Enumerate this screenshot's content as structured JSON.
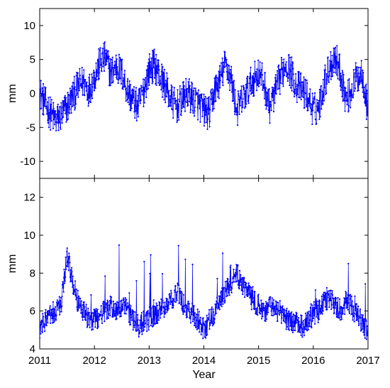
{
  "chart_data": [
    {
      "type": "line",
      "panel": "top",
      "title": "",
      "xlabel": "",
      "ylabel": "mm",
      "xlim": [
        2011,
        2017
      ],
      "ylim": [
        -12.5,
        12.5
      ],
      "yticks": [
        -10,
        -5,
        0,
        5,
        10
      ],
      "xticks": [
        2011,
        2012,
        2013,
        2014,
        2015,
        2016,
        2017
      ],
      "grid": false,
      "legend": "none",
      "marker": "dot",
      "color": "#0000ff",
      "series": [
        {
          "x": [
            2011.0,
            2011.1,
            2011.2,
            2011.3,
            2011.4,
            2011.5,
            2011.6,
            2011.7,
            2011.8,
            2011.9,
            2012.0,
            2012.1,
            2012.2,
            2012.3,
            2012.4,
            2012.5,
            2012.6,
            2012.7,
            2012.8,
            2012.9,
            2013.0,
            2013.1,
            2013.2,
            2013.3,
            2013.4,
            2013.5,
            2013.6,
            2013.7,
            2013.8,
            2013.9,
            2014.0,
            2014.1,
            2014.2,
            2014.3,
            2014.4,
            2014.5,
            2014.6,
            2014.7,
            2014.8,
            2014.9,
            2015.0,
            2015.1,
            2015.2,
            2015.3,
            2015.4,
            2015.5,
            2015.6,
            2015.7,
            2015.8,
            2015.9,
            2016.0,
            2016.1,
            2016.2,
            2016.3,
            2016.4,
            2016.5,
            2016.6,
            2016.7,
            2016.8,
            2016.9,
            2017.0
          ],
          "y": [
            0.2,
            -1.5,
            -3.0,
            -4.0,
            -3.2,
            -2.0,
            -0.5,
            1.0,
            1.8,
            0.5,
            2.5,
            4.5,
            5.2,
            3.0,
            4.0,
            3.0,
            0.5,
            -1.0,
            -2.0,
            0.5,
            3.5,
            4.2,
            2.5,
            1.0,
            -1.0,
            -2.0,
            -1.0,
            0.0,
            -0.8,
            -1.5,
            -2.5,
            -3.0,
            0.5,
            2.0,
            4.5,
            2.0,
            -2.5,
            -1.0,
            0.5,
            2.0,
            3.0,
            1.5,
            -2.0,
            0.0,
            2.5,
            4.5,
            3.0,
            1.0,
            0.5,
            -0.5,
            -2.5,
            -2.0,
            1.5,
            4.0,
            5.5,
            3.0,
            -1.0,
            0.5,
            2.5,
            3.0,
            -3.0
          ]
        }
      ]
    },
    {
      "type": "line",
      "panel": "bottom",
      "title": "",
      "xlabel": "Year",
      "ylabel": "mm",
      "xlim": [
        2011,
        2017
      ],
      "ylim": [
        4,
        13
      ],
      "yticks": [
        4,
        6,
        8,
        10,
        12
      ],
      "xticks": [
        2011,
        2012,
        2013,
        2014,
        2015,
        2016,
        2017
      ],
      "grid": false,
      "legend": "none",
      "marker": "dot",
      "color": "#0000ff",
      "series": [
        {
          "x": [
            2011.0,
            2011.1,
            2011.2,
            2011.3,
            2011.4,
            2011.5,
            2011.6,
            2011.7,
            2011.8,
            2011.9,
            2012.0,
            2012.1,
            2012.2,
            2012.3,
            2012.4,
            2012.5,
            2012.6,
            2012.7,
            2012.8,
            2012.9,
            2013.0,
            2013.1,
            2013.2,
            2013.3,
            2013.4,
            2013.5,
            2013.6,
            2013.7,
            2013.8,
            2013.9,
            2014.0,
            2014.1,
            2014.2,
            2014.3,
            2014.4,
            2014.5,
            2014.6,
            2014.7,
            2014.8,
            2014.9,
            2015.0,
            2015.1,
            2015.2,
            2015.3,
            2015.4,
            2015.5,
            2015.6,
            2015.7,
            2015.8,
            2015.9,
            2016.0,
            2016.1,
            2016.2,
            2016.3,
            2016.4,
            2016.5,
            2016.6,
            2016.7,
            2016.8,
            2016.9,
            2017.0
          ],
          "y": [
            5.0,
            5.5,
            5.8,
            6.0,
            6.5,
            9.0,
            7.5,
            6.5,
            6.0,
            5.6,
            5.5,
            5.8,
            6.0,
            6.2,
            6.0,
            6.3,
            6.0,
            5.5,
            5.2,
            5.4,
            5.6,
            5.8,
            6.0,
            6.3,
            6.5,
            7.0,
            6.5,
            6.0,
            5.8,
            5.5,
            5.0,
            5.5,
            6.0,
            6.5,
            7.0,
            7.5,
            8.0,
            7.5,
            7.0,
            6.5,
            6.3,
            6.0,
            6.2,
            6.1,
            5.8,
            5.6,
            5.5,
            5.3,
            5.2,
            5.4,
            5.8,
            6.0,
            6.5,
            6.8,
            6.3,
            6.0,
            6.5,
            6.2,
            5.8,
            5.3,
            4.8
          ]
        }
      ]
    }
  ]
}
